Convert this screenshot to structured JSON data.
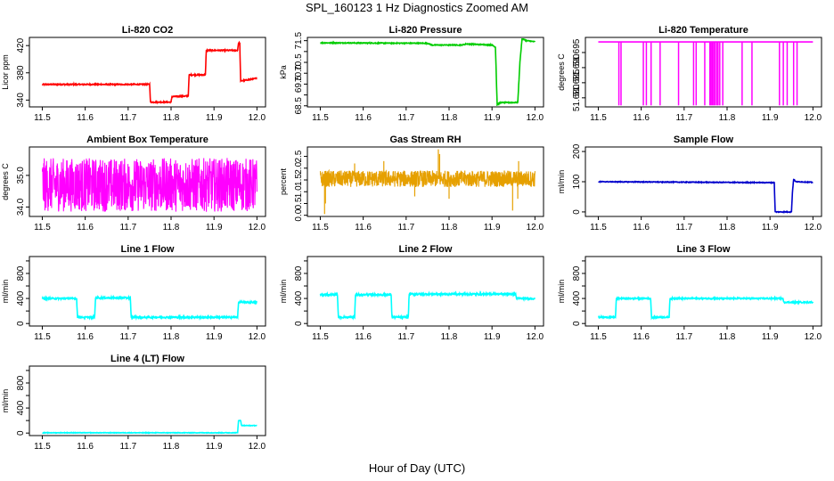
{
  "page": {
    "title": "SPL_160123  1 Hz Diagnostics Zoomed AM",
    "xlabel": "Hour of Day (UTC)"
  },
  "chart_data": [
    {
      "type": "line",
      "title": "Li-820 CO2",
      "xlabel": "",
      "ylabel": "Licor ppm",
      "xlim": [
        11.47,
        12.02
      ],
      "ylim": [
        330,
        432
      ],
      "xticks": [
        11.5,
        11.6,
        11.7,
        11.8,
        11.9,
        12.0
      ],
      "xtick_labels": [
        "11.5",
        "11.6",
        "11.7",
        "11.8",
        "11.9",
        "12.0"
      ],
      "yticks": [
        340,
        380,
        420
      ],
      "ytick_labels": [
        "340",
        "380",
        "420"
      ],
      "color": "#ff0000",
      "series": [
        {
          "x": [
            11.5,
            11.75,
            11.752,
            11.8,
            11.802,
            11.84,
            11.842,
            11.88,
            11.882,
            11.955,
            11.957,
            11.96,
            11.962,
            12.0
          ],
          "y": [
            363,
            363,
            337,
            337,
            345,
            346,
            377,
            377,
            413,
            413,
            424,
            424,
            368,
            372
          ]
        }
      ],
      "noise": 0.8
    },
    {
      "type": "line",
      "title": "Li-820 Pressure",
      "xlabel": "",
      "ylabel": "kPa",
      "xlim": [
        11.47,
        12.02
      ],
      "ylim": [
        68.45,
        71.65
      ],
      "xticks": [
        11.5,
        11.6,
        11.7,
        11.8,
        11.9,
        12.0
      ],
      "xtick_labels": [
        "11.5",
        "11.6",
        "11.7",
        "11.8",
        "11.9",
        "12.0"
      ],
      "yticks": [
        68.5,
        69.0,
        69.5,
        70.0,
        70.5,
        71.0,
        71.5
      ],
      "ytick_labels": [
        "68.5",
        "",
        "69.5",
        "70.0",
        "70.5",
        "",
        "71.5"
      ],
      "color": "#00cc00",
      "series": [
        {
          "x": [
            11.5,
            11.75,
            11.76,
            11.83,
            11.84,
            11.9,
            11.908,
            11.912,
            11.92,
            11.96,
            11.965,
            11.97,
            11.98,
            12.0
          ],
          "y": [
            71.4,
            71.38,
            71.3,
            71.3,
            71.35,
            71.3,
            71.2,
            68.55,
            68.65,
            68.65,
            70.5,
            71.6,
            71.5,
            71.45
          ]
        }
      ],
      "noise": 0.02
    },
    {
      "type": "line",
      "title": "Li-820 Temperature",
      "xlabel": "",
      "ylabel": "degrees C",
      "xlim": [
        11.47,
        12.02
      ],
      "ylim": [
        51.677,
        51.7
      ],
      "xticks": [
        11.5,
        11.6,
        11.7,
        11.8,
        11.9,
        12.0
      ],
      "xtick_labels": [
        "11.5",
        "11.6",
        "11.7",
        "11.8",
        "11.9",
        "12.0"
      ],
      "yticks": [
        51.68,
        51.685,
        51.69,
        51.695
      ],
      "ytick_labels": [
        "51.680",
        "51.685",
        "51.690",
        "51.695"
      ],
      "color": "#ff00ff",
      "baseline": 51.6985,
      "low": 51.6775,
      "drops": [
        11.548,
        11.553,
        11.605,
        11.612,
        11.623,
        11.644,
        11.687,
        11.722,
        11.728,
        11.748,
        11.76,
        11.763,
        11.766,
        11.769,
        11.772,
        11.776,
        11.779,
        11.783,
        11.79,
        11.835,
        11.858,
        11.922,
        11.931,
        11.94,
        11.955,
        11.963
      ]
    },
    {
      "type": "line",
      "title": "Ambient Box Temperature",
      "xlabel": "",
      "ylabel": "degrees C",
      "xlim": [
        11.47,
        12.02
      ],
      "ylim": [
        33.7,
        35.9
      ],
      "xticks": [
        11.5,
        11.6,
        11.7,
        11.8,
        11.9,
        12.0
      ],
      "xtick_labels": [
        "11.5",
        "11.6",
        "11.7",
        "11.8",
        "11.9",
        "12.0"
      ],
      "yticks": [
        34.0,
        35.0
      ],
      "ytick_labels": [
        "34.0",
        "35.0"
      ],
      "color": "#ff00ff",
      "center": 34.7,
      "amplitude": 0.85
    },
    {
      "type": "line",
      "title": "Gas Stream RH",
      "xlabel": "",
      "ylabel": "percent",
      "xlim": [
        11.47,
        12.02
      ],
      "ylim": [
        -0.05,
        2.9
      ],
      "xticks": [
        11.5,
        11.6,
        11.7,
        11.8,
        11.9,
        12.0
      ],
      "xtick_labels": [
        "11.5",
        "11.6",
        "11.7",
        "11.8",
        "11.9",
        "12.0"
      ],
      "yticks": [
        0.0,
        0.5,
        1.0,
        1.5,
        2.0,
        2.5
      ],
      "ytick_labels": [
        "0.0",
        "0.5",
        "1.0",
        "1.5",
        "2.0",
        "2.5"
      ],
      "color": "#e6a000",
      "center": 1.55,
      "amplitude": 0.35,
      "spikes": [
        {
          "x": 11.51,
          "y": 0.05
        },
        {
          "x": 11.512,
          "y": 0.5
        },
        {
          "x": 11.58,
          "y": 2.2
        },
        {
          "x": 11.648,
          "y": 2.3
        },
        {
          "x": 11.72,
          "y": 0.8
        },
        {
          "x": 11.775,
          "y": 2.8
        },
        {
          "x": 11.778,
          "y": 2.6
        },
        {
          "x": 11.8,
          "y": 0.7
        },
        {
          "x": 11.948,
          "y": 0.2
        },
        {
          "x": 11.962,
          "y": 2.3
        },
        {
          "x": 11.96,
          "y": 0.7
        }
      ]
    },
    {
      "type": "line",
      "title": "Sample Flow",
      "xlabel": "",
      "ylabel": "ml/min",
      "xlim": [
        11.47,
        12.02
      ],
      "ylim": [
        -15,
        215
      ],
      "xticks": [
        11.5,
        11.6,
        11.7,
        11.8,
        11.9,
        12.0
      ],
      "xtick_labels": [
        "11.5",
        "11.6",
        "11.7",
        "11.8",
        "11.9",
        "12.0"
      ],
      "yticks": [
        0,
        100,
        200
      ],
      "ytick_labels": [
        "0",
        "100",
        "200"
      ],
      "color": "#0000cc",
      "series": [
        {
          "x": [
            11.5,
            11.9,
            11.91,
            11.912,
            11.95,
            11.952,
            11.955,
            11.96,
            12.0
          ],
          "y": [
            100,
            97,
            97,
            0,
            0,
            60,
            108,
            100,
            98
          ]
        }
      ],
      "noise": 1.2
    },
    {
      "type": "line",
      "title": "Line 1 Flow",
      "xlabel": "",
      "ylabel": "ml/min",
      "xlim": [
        11.47,
        12.02
      ],
      "ylim": [
        -40,
        1070
      ],
      "xticks": [
        11.5,
        11.6,
        11.7,
        11.8,
        11.9,
        12.0
      ],
      "xtick_labels": [
        "11.5",
        "11.6",
        "11.7",
        "11.8",
        "11.9",
        "12.0"
      ],
      "yticks": [
        0,
        200,
        400,
        600,
        800,
        1000
      ],
      "ytick_labels": [
        "0",
        "400",
        "800"
      ],
      "ytick_label_values": [
        0,
        400,
        800
      ],
      "color": "#00ffff",
      "series": [
        {
          "x": [
            11.5,
            11.58,
            11.582,
            11.622,
            11.624,
            11.705,
            11.707,
            11.955,
            11.957,
            12.0
          ],
          "y": [
            400,
            400,
            100,
            100,
            410,
            410,
            100,
            100,
            340,
            340
          ]
        }
      ],
      "noise": 12
    },
    {
      "type": "line",
      "title": "Line 2 Flow",
      "xlabel": "",
      "ylabel": "ml/min",
      "xlim": [
        11.47,
        12.02
      ],
      "ylim": [
        -40,
        1070
      ],
      "xticks": [
        11.5,
        11.6,
        11.7,
        11.8,
        11.9,
        12.0
      ],
      "xtick_labels": [
        "11.5",
        "11.6",
        "11.7",
        "11.8",
        "11.9",
        "12.0"
      ],
      "yticks": [
        0,
        200,
        400,
        600,
        800,
        1000
      ],
      "ytick_labels": [
        "0",
        "400",
        "800"
      ],
      "ytick_label_values": [
        0,
        400,
        800
      ],
      "color": "#00ffff",
      "series": [
        {
          "x": [
            11.5,
            11.54,
            11.542,
            11.58,
            11.582,
            11.665,
            11.667,
            11.705,
            11.707,
            11.955,
            11.957,
            12.0
          ],
          "y": [
            460,
            460,
            100,
            100,
            460,
            460,
            100,
            100,
            470,
            470,
            400,
            400
          ]
        }
      ],
      "noise": 14
    },
    {
      "type": "line",
      "title": "Line 3 Flow",
      "xlabel": "",
      "ylabel": "ml/min",
      "xlim": [
        11.47,
        12.02
      ],
      "ylim": [
        -40,
        1070
      ],
      "xticks": [
        11.5,
        11.6,
        11.7,
        11.8,
        11.9,
        12.0
      ],
      "xtick_labels": [
        "11.5",
        "11.6",
        "11.7",
        "11.8",
        "11.9",
        "12.0"
      ],
      "yticks": [
        0,
        200,
        400,
        600,
        800,
        1000
      ],
      "ytick_labels": [
        "0",
        "400",
        "800"
      ],
      "ytick_label_values": [
        0,
        400,
        800
      ],
      "color": "#00ffff",
      "series": [
        {
          "x": [
            11.5,
            11.54,
            11.542,
            11.622,
            11.624,
            11.665,
            11.667,
            11.93,
            11.932,
            12.0
          ],
          "y": [
            100,
            100,
            400,
            400,
            100,
            100,
            400,
            400,
            340,
            340
          ]
        }
      ],
      "noise": 10
    },
    {
      "type": "line",
      "title": "Line 4 (LT) Flow",
      "xlabel": "",
      "ylabel": "ml/min",
      "xlim": [
        11.47,
        12.02
      ],
      "ylim": [
        -40,
        1070
      ],
      "xticks": [
        11.5,
        11.6,
        11.7,
        11.8,
        11.9,
        12.0
      ],
      "xtick_labels": [
        "11.5",
        "11.6",
        "11.7",
        "11.8",
        "11.9",
        "12.0"
      ],
      "yticks": [
        0,
        200,
        400,
        600,
        800,
        1000
      ],
      "ytick_labels": [
        "0",
        "400",
        "800"
      ],
      "ytick_label_values": [
        0,
        400,
        800
      ],
      "color": "#00ffff",
      "series": [
        {
          "x": [
            11.5,
            11.955,
            11.957,
            11.962,
            11.964,
            12.0
          ],
          "y": [
            5,
            5,
            200,
            200,
            120,
            120
          ]
        }
      ],
      "noise": 4
    }
  ]
}
